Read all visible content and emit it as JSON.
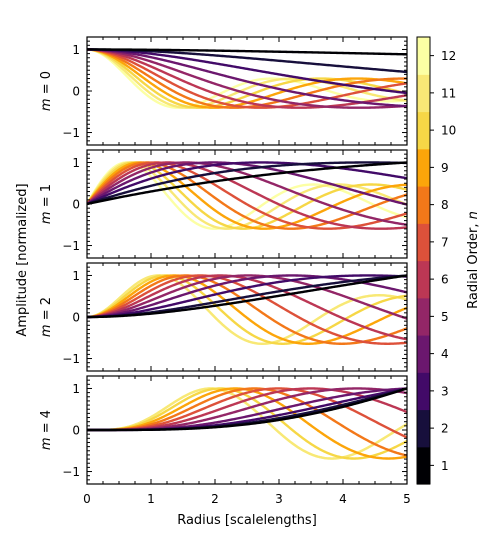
{
  "chart_data": {
    "type": "line",
    "xlabel": "Radius [scalelengths]",
    "ylabel": "Amplitude [normalized]",
    "xlim": [
      0,
      5
    ],
    "ylim": [
      -1.3,
      1.3
    ],
    "x_ticks": [
      "0",
      "1",
      "2",
      "3",
      "4",
      "5"
    ],
    "y_ticks": [
      "−1",
      "0",
      "1"
    ],
    "panels": [
      {
        "label_prefix": "m",
        "label_value": "0",
        "m": 0
      },
      {
        "label_prefix": "m",
        "label_value": "1",
        "m": 1
      },
      {
        "label_prefix": "m",
        "label_value": "2",
        "m": 2
      },
      {
        "label_prefix": "m",
        "label_value": "4",
        "m": 4
      }
    ],
    "radial_orders": [
      1,
      2,
      3,
      4,
      5,
      6,
      7,
      8,
      9,
      10,
      11,
      12
    ],
    "colorbar": {
      "label_text": "Radial Order, ",
      "label_var": "n",
      "ticks": [
        "1",
        "2",
        "3",
        "4",
        "5",
        "6",
        "7",
        "8",
        "9",
        "10",
        "11",
        "12"
      ],
      "colormap": "magma"
    },
    "series_colors": [
      "#000004",
      "#170f3c",
      "#420a68",
      "#6b176e",
      "#932667",
      "#bc3754",
      "#dd513a",
      "#f37819",
      "#fca50a",
      "#f6d746",
      "#f8e876",
      "#fcffa4"
    ],
    "legend": "right colorbar",
    "grid": false
  }
}
